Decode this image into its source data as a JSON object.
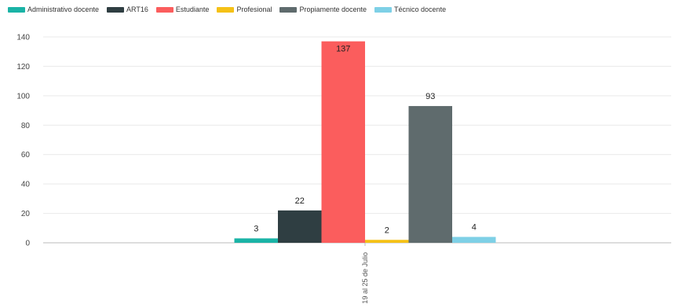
{
  "chart_data": {
    "type": "bar",
    "categories": [
      "19 al 25 de Julio"
    ],
    "series": [
      {
        "name": "Administrativo docente",
        "color": "#1ab3a6",
        "values": [
          3
        ]
      },
      {
        "name": "ART16",
        "color": "#2f3e42",
        "values": [
          22
        ]
      },
      {
        "name": "Estudiante",
        "color": "#fb5d5d",
        "values": [
          137
        ]
      },
      {
        "name": "Profesional",
        "color": "#f5c116",
        "values": [
          2
        ]
      },
      {
        "name": "Propiamente docente",
        "color": "#5f6b6d",
        "values": [
          93
        ]
      },
      {
        "name": "Técnico docente",
        "color": "#7ed0e6",
        "values": [
          4
        ]
      }
    ],
    "y_ticks": [
      0,
      20,
      40,
      60,
      80,
      100,
      120,
      140
    ],
    "ylim": [
      0,
      140
    ],
    "grid": true,
    "legend_position": "top-left",
    "data_labels": true
  }
}
